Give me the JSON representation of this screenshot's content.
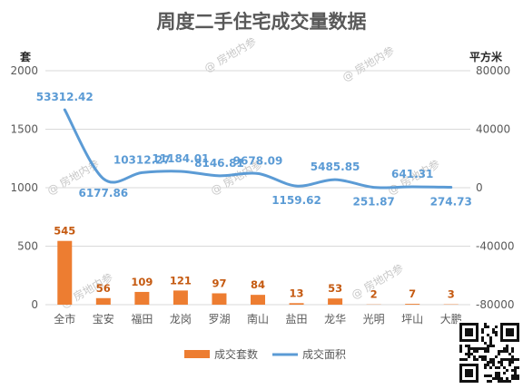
{
  "chart_data": {
    "type": "bar+line",
    "title": "周度二手住宅成交量数据",
    "y_left_unit": "套",
    "y_right_unit": "平方米",
    "y_left_ticks": [
      "0",
      "500",
      "1000",
      "1500",
      "2000"
    ],
    "y_right_ticks": [
      "-80000",
      "-40000",
      "0",
      "40000",
      "80000"
    ],
    "ylim_left": [
      0,
      2000
    ],
    "ylim_right": [
      -80000,
      80000
    ],
    "categories": [
      "全市",
      "宝安",
      "福田",
      "龙岗",
      "罗湖",
      "南山",
      "盐田",
      "龙华",
      "光明",
      "坪山",
      "大鹏"
    ],
    "series": [
      {
        "name": "成交套数",
        "type": "bar",
        "axis": "left",
        "color": "#ed7d31",
        "values": [
          545,
          56,
          109,
          121,
          97,
          84,
          13,
          53,
          2,
          7,
          3
        ],
        "labels": [
          "545",
          "56",
          "109",
          "121",
          "97",
          "84",
          "13",
          "53",
          "2",
          "7",
          "3"
        ]
      },
      {
        "name": "成交面积",
        "type": "line",
        "axis": "right",
        "color": "#5b9bd5",
        "values": [
          53312.42,
          6177.86,
          10312.27,
          11184.01,
          8146.81,
          9678.09,
          1159.62,
          5485.85,
          251.87,
          641.31,
          274.73
        ],
        "labels": [
          "53312.42",
          "6177.86",
          "10312.27",
          "11184.01",
          "8146.81",
          "9678.09",
          "1159.62",
          "5485.85",
          "251.87",
          "641.31",
          "274.73"
        ]
      }
    ],
    "legend_position": "bottom",
    "grid": "horizontal",
    "watermark": "房地内参"
  }
}
